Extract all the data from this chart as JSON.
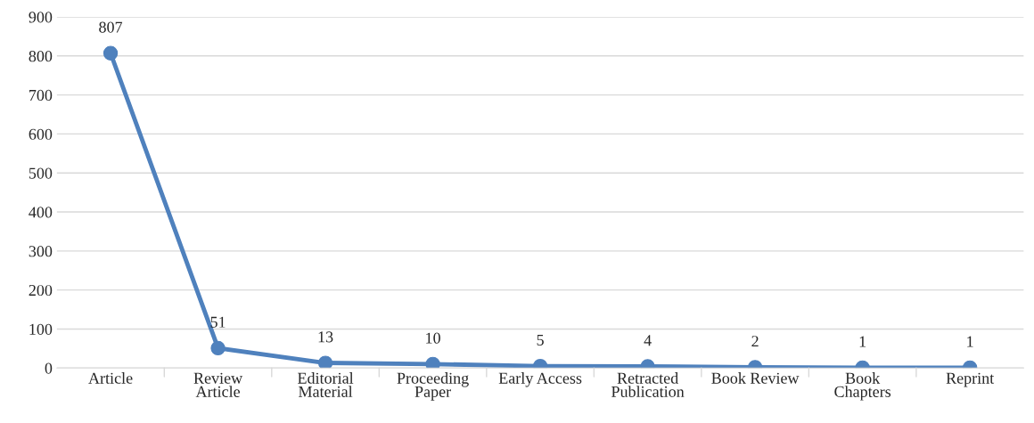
{
  "chart_data": {
    "type": "line",
    "categories": [
      "Article",
      "Review\nArticle",
      "Editorial\nMaterial",
      "Proceeding\nPaper",
      "Early Access",
      "Retracted\nPublication",
      "Book Review",
      "Book\nChapters",
      "Reprint"
    ],
    "series": [
      {
        "color": "#4f81bd",
        "values": [
          807,
          51,
          13,
          10,
          5,
          4,
          2,
          1,
          1
        ]
      }
    ],
    "ylim": [
      0,
      900
    ],
    "yticks": [
      0,
      100,
      200,
      300,
      400,
      500,
      600,
      700,
      800,
      900
    ],
    "grid": "y",
    "marker": "circle",
    "line_style": "solid",
    "data_labels": true,
    "legend": false
  }
}
